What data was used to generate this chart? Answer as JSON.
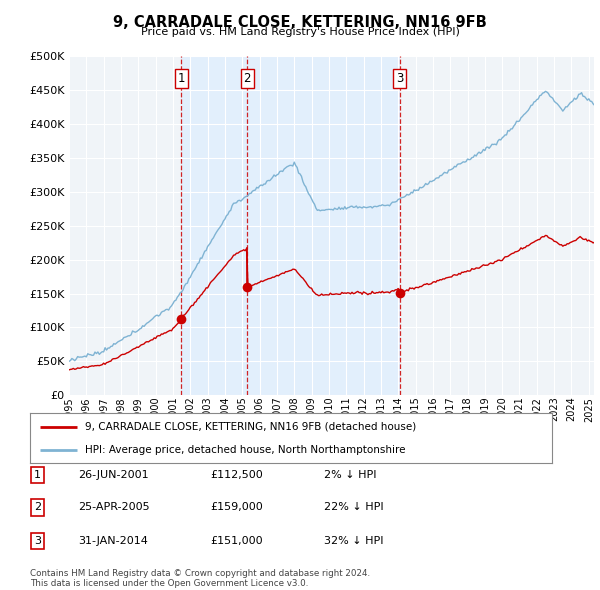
{
  "title": "9, CARRADALE CLOSE, KETTERING, NN16 9FB",
  "subtitle": "Price paid vs. HM Land Registry's House Price Index (HPI)",
  "legend_line1": "9, CARRADALE CLOSE, KETTERING, NN16 9FB (detached house)",
  "legend_line2": "HPI: Average price, detached house, North Northamptonshire",
  "footer": "Contains HM Land Registry data © Crown copyright and database right 2024.\nThis data is licensed under the Open Government Licence v3.0.",
  "sale_color": "#cc0000",
  "hpi_color": "#7fb3d3",
  "vertical_line_color": "#cc0000",
  "shade_color": "#ddeeff",
  "grid_color": "#cccccc",
  "background_color": "#ffffff",
  "plot_bg_color": "#f0f4f8",
  "ylim": [
    0,
    500000
  ],
  "yticks": [
    0,
    50000,
    100000,
    150000,
    200000,
    250000,
    300000,
    350000,
    400000,
    450000,
    500000
  ],
  "xlim_left": 1995.0,
  "xlim_right": 2025.3,
  "sales": [
    {
      "date_num": 2001.48,
      "price": 112500,
      "label": "1"
    },
    {
      "date_num": 2005.29,
      "price": 159000,
      "label": "2"
    },
    {
      "date_num": 2014.08,
      "price": 151000,
      "label": "3"
    }
  ],
  "table_rows": [
    {
      "num": "1",
      "date": "26-JUN-2001",
      "price": "£112,500",
      "hpi": "2% ↓ HPI"
    },
    {
      "num": "2",
      "date": "25-APR-2005",
      "price": "£159,000",
      "hpi": "22% ↓ HPI"
    },
    {
      "num": "3",
      "date": "31-JAN-2014",
      "price": "£151,000",
      "hpi": "32% ↓ HPI"
    }
  ]
}
